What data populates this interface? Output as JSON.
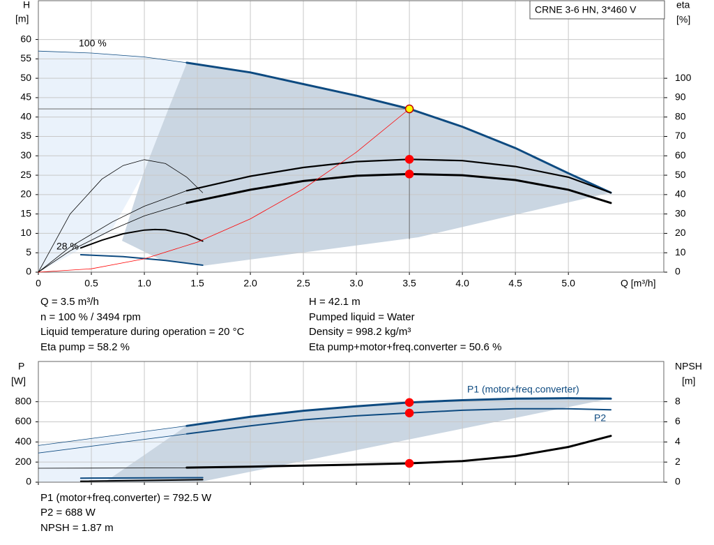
{
  "chart_data": [
    {
      "type": "line",
      "title": "CRNE 3-6 HN, 3*460 V",
      "ylabel": [
        "H",
        "[m]"
      ],
      "y2label": [
        "eta",
        "[%]"
      ],
      "xlabel": "Q [m³/h]",
      "xlim": [
        0,
        5.9
      ],
      "xticks": [
        0,
        0.5,
        {
          "value": 1,
          "label": "1.0"
        },
        1.5,
        {
          "value": 2,
          "label": "2.0"
        },
        2.5,
        {
          "value": 3,
          "label": "3.0"
        },
        3.5,
        {
          "value": 4,
          "label": "4.0"
        },
        4.5,
        {
          "value": 5,
          "label": "5.0"
        }
      ],
      "show_xtick_labels": true,
      "ylim": [
        0,
        70
      ],
      "yticks": [
        0,
        5,
        10,
        15,
        20,
        25,
        30,
        35,
        40,
        45,
        50,
        55,
        60
      ],
      "y2lim": [
        0,
        140
      ],
      "y2ticks": [
        0,
        10,
        20,
        30,
        40,
        50,
        60,
        70,
        80,
        90,
        100
      ],
      "grid": true,
      "annotations": [
        "100 %",
        "28 %"
      ],
      "series": [
        {
          "color": "#0d4a80",
          "width": 0.8,
          "x": [
            0,
            0.5,
            1.0,
            1.4
          ],
          "values": [
            57,
            56.5,
            55.5,
            54
          ]
        },
        {
          "color": "#0d4a80",
          "width": 3,
          "x": [
            1.4,
            2.0,
            2.5,
            3.0,
            3.5,
            4.0,
            4.5,
            5.0,
            5.4
          ],
          "values": [
            54,
            51.5,
            48.5,
            45.5,
            42.1,
            37.5,
            32,
            25.5,
            20.5
          ]
        },
        {
          "color": "#0d4a80",
          "width": 2,
          "x": [
            0.4,
            0.8,
            1.2,
            1.55
          ],
          "values": [
            4.5,
            4.0,
            3.0,
            1.8
          ]
        },
        {
          "color": "#000000",
          "width": 0.8,
          "axis": "y2",
          "x": [
            0,
            0.3,
            0.7,
            1.0,
            1.4
          ],
          "values": [
            0,
            13,
            26,
            34,
            42
          ]
        },
        {
          "color": "#000000",
          "width": 2.2,
          "axis": "y2",
          "x": [
            1.4,
            2.0,
            2.5,
            3.0,
            3.5,
            4.0,
            4.5,
            5.0,
            5.4
          ],
          "values": [
            42,
            49.5,
            54,
            57,
            58.2,
            57.5,
            54.5,
            49,
            41
          ]
        },
        {
          "color": "#000000",
          "width": 0.8,
          "axis": "y2",
          "x": [
            0,
            0.3,
            0.7,
            1.0,
            1.4
          ],
          "values": [
            0,
            11,
            22,
            29,
            35.7
          ]
        },
        {
          "color": "#000000",
          "width": 3,
          "axis": "y2",
          "x": [
            1.4,
            2.0,
            2.5,
            3.0,
            3.5,
            4.0,
            4.5,
            5.0,
            5.4
          ],
          "values": [
            35.7,
            42.5,
            47,
            49.7,
            50.6,
            50,
            47.5,
            42.5,
            35.7
          ]
        },
        {
          "color": "#000000",
          "width": 0.8,
          "axis": "y2",
          "x": [
            0,
            0.3,
            0.6,
            0.8,
            1.0,
            1.2,
            1.4,
            1.55
          ],
          "values": [
            0,
            30,
            48,
            55,
            58,
            56,
            49,
            41
          ]
        },
        {
          "color": "#000000",
          "width": 2,
          "axis": "y2",
          "x": [
            0.4,
            0.6,
            0.8,
            1.0,
            1.1,
            1.2,
            1.4,
            1.55
          ],
          "values": [
            12.5,
            16.5,
            19.8,
            21.7,
            22,
            21.8,
            19.5,
            16
          ]
        },
        {
          "color": "#ff0000",
          "width": 0.8,
          "x": [
            0,
            0.5,
            1.0,
            1.5,
            2.0,
            2.5,
            3.0,
            3.5
          ],
          "values": [
            0,
            0.86,
            3.44,
            7.73,
            13.75,
            21.48,
            30.93,
            42.1
          ]
        }
      ],
      "points": [
        {
          "x": 3.5,
          "value": 42.1,
          "color": "#ffff00"
        },
        {
          "x": 3.5,
          "value": 58.2,
          "axis": "y2",
          "color": "#ff0000"
        },
        {
          "x": 3.5,
          "value": 50.6,
          "axis": "y2",
          "color": "#ff0000"
        }
      ]
    },
    {
      "type": "line",
      "ylabel": [
        "P",
        "[W]"
      ],
      "y2label": [
        "NPSH",
        "[m]"
      ],
      "xlim": [
        0,
        5.9
      ],
      "xticks": [
        0,
        0.5,
        1,
        1.5,
        2,
        2.5,
        3,
        3.5,
        4,
        4.5,
        5
      ],
      "show_xtick_labels": false,
      "ylim": [
        0,
        1200
      ],
      "yticks": [
        0,
        200,
        400,
        600,
        800
      ],
      "y2lim": [
        0,
        12
      ],
      "y2ticks": [
        0,
        2,
        4,
        6,
        8
      ],
      "grid": true,
      "series": [
        {
          "color": "#0d4a80",
          "width": 0.8,
          "x": [
            0,
            1.4
          ],
          "values": [
            365,
            560
          ]
        },
        {
          "name": "P1 (motor+freq.converter)",
          "color": "#0d4a80",
          "width": 3,
          "x": [
            1.4,
            2.0,
            2.5,
            3.0,
            3.5,
            4.0,
            4.5,
            5.0,
            5.4
          ],
          "values": [
            560,
            650,
            710,
            755,
            792.5,
            815,
            830,
            835,
            830
          ]
        },
        {
          "color": "#0d4a80",
          "width": 0.8,
          "x": [
            0,
            1.4
          ],
          "values": [
            290,
            480
          ]
        },
        {
          "name": "P2",
          "color": "#0d4a80",
          "width": 2,
          "x": [
            1.4,
            2.0,
            2.5,
            3.0,
            3.5,
            4.0,
            4.5,
            5.0,
            5.4
          ],
          "values": [
            480,
            560,
            620,
            660,
            688,
            715,
            730,
            730,
            720
          ]
        },
        {
          "color": "#000000",
          "width": 0.8,
          "axis": "y2",
          "x": [
            0,
            1.4
          ],
          "values": [
            1.39,
            1.42
          ]
        },
        {
          "color": "#000000",
          "width": 3,
          "axis": "y2",
          "x": [
            1.4,
            2.0,
            2.5,
            3.0,
            3.5,
            4.0,
            4.5,
            5.0,
            5.4
          ],
          "values": [
            1.45,
            1.55,
            1.65,
            1.75,
            1.87,
            2.1,
            2.6,
            3.5,
            4.6
          ]
        },
        {
          "color": "#0d4a80",
          "width": 2,
          "x": [
            0.4,
            1.55
          ],
          "values": [
            40,
            45
          ]
        },
        {
          "color": "#000000",
          "width": 2,
          "axis": "y2",
          "x": [
            0.4,
            1.55
          ],
          "values": [
            0.1,
            0.25
          ]
        }
      ],
      "points": [
        {
          "x": 3.5,
          "value": 792.5,
          "color": "#ff0000"
        },
        {
          "x": 3.5,
          "value": 688,
          "color": "#ff0000"
        },
        {
          "x": 3.5,
          "value": 1.87,
          "axis": "y2",
          "color": "#ff0000"
        }
      ]
    }
  ],
  "operating_info": {
    "left": [
      "Q = 3.5 m³/h",
      "n = 100 % / 3494 rpm",
      "Liquid temperature during operation = 20 °C",
      "Eta pump = 58.2 %"
    ],
    "right": [
      "H = 42.1 m",
      "Pumped liquid = Water",
      "Density = 998.2 kg/m³",
      "Eta pump+motor+freq.converter = 50.6 %"
    ]
  },
  "power_info": [
    "P1 (motor+freq.converter) = 792.5 W",
    "P2 = 688 W",
    "NPSH = 1.87 m"
  ]
}
